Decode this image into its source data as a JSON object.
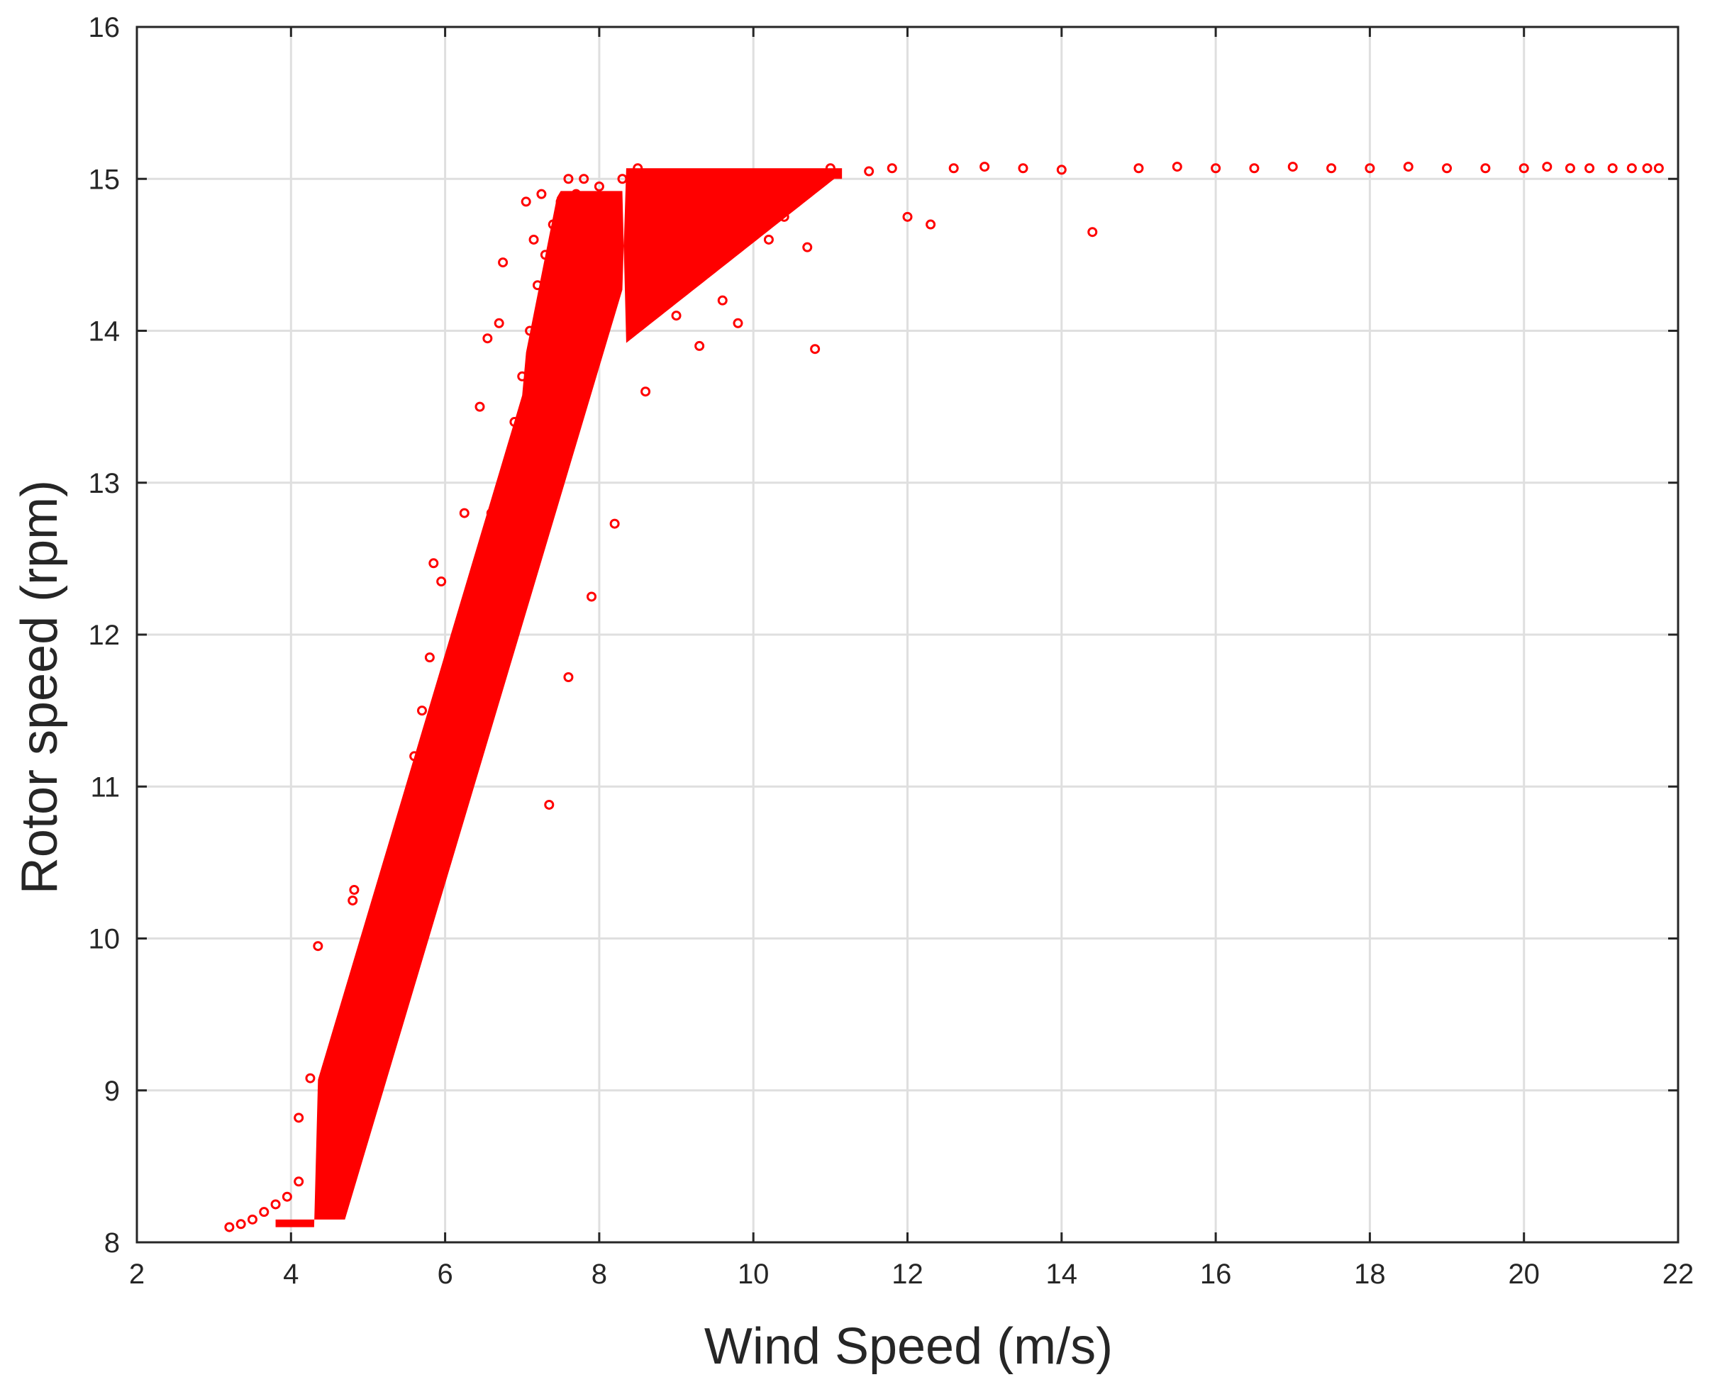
{
  "chart_data": {
    "type": "scatter",
    "xlabel": "Wind Speed (m/s)",
    "ylabel": "Rotor speed (rpm)",
    "xlim": [
      2,
      22
    ],
    "ylim": [
      8,
      16
    ],
    "xticks": [
      "2",
      "4",
      "6",
      "8",
      "10",
      "12",
      "14",
      "16",
      "18",
      "20",
      "22"
    ],
    "yticks": [
      "8",
      "9",
      "10",
      "11",
      "12",
      "13",
      "14",
      "15",
      "16"
    ],
    "grid": true,
    "marker_color": "#ff0000",
    "marker": "open-circle",
    "series": [
      {
        "values": [
          [
            3.2,
            8.1
          ],
          [
            3.35,
            8.12
          ],
          [
            3.5,
            8.15
          ],
          [
            3.65,
            8.2
          ],
          [
            3.8,
            8.25
          ],
          [
            3.95,
            8.3
          ],
          [
            4.1,
            8.4
          ],
          [
            4.1,
            8.82
          ],
          [
            4.25,
            9.08
          ],
          [
            4.35,
            9.95
          ],
          [
            4.45,
            8.6
          ],
          [
            4.55,
            8.95
          ],
          [
            4.65,
            9.45
          ],
          [
            4.8,
            10.25
          ],
          [
            4.82,
            10.32
          ],
          [
            4.9,
            9.1
          ],
          [
            5.0,
            9.4
          ],
          [
            5.1,
            9.7
          ],
          [
            5.2,
            10.0
          ],
          [
            5.3,
            10.3
          ],
          [
            5.4,
            10.6
          ],
          [
            5.5,
            10.9
          ],
          [
            5.6,
            11.2
          ],
          [
            5.7,
            11.5
          ],
          [
            5.8,
            11.85
          ],
          [
            5.85,
            12.47
          ],
          [
            5.95,
            12.35
          ],
          [
            6.0,
            11.0
          ],
          [
            6.1,
            11.3
          ],
          [
            6.2,
            11.6
          ],
          [
            6.25,
            12.8
          ],
          [
            6.3,
            11.9
          ],
          [
            6.4,
            12.2
          ],
          [
            6.45,
            13.5
          ],
          [
            6.5,
            12.5
          ],
          [
            6.55,
            13.95
          ],
          [
            6.6,
            12.8
          ],
          [
            6.7,
            14.05
          ],
          [
            6.75,
            14.45
          ],
          [
            6.8,
            13.1
          ],
          [
            6.9,
            13.4
          ],
          [
            7.0,
            13.7
          ],
          [
            7.05,
            14.85
          ],
          [
            7.1,
            14.0
          ],
          [
            7.15,
            14.6
          ],
          [
            7.2,
            14.3
          ],
          [
            7.25,
            14.9
          ],
          [
            7.3,
            14.5
          ],
          [
            7.35,
            10.88
          ],
          [
            7.4,
            14.7
          ],
          [
            7.5,
            14.85
          ],
          [
            7.6,
            15.0
          ],
          [
            7.6,
            11.72
          ],
          [
            7.7,
            14.9
          ],
          [
            7.8,
            15.0
          ],
          [
            7.9,
            12.25
          ],
          [
            8.0,
            14.95
          ],
          [
            8.2,
            12.73
          ],
          [
            8.3,
            15.0
          ],
          [
            8.5,
            15.07
          ],
          [
            8.6,
            13.6
          ],
          [
            8.8,
            14.6
          ],
          [
            9.0,
            14.1
          ],
          [
            9.3,
            13.9
          ],
          [
            9.6,
            14.2
          ],
          [
            9.8,
            14.05
          ],
          [
            10.2,
            14.6
          ],
          [
            10.4,
            14.75
          ],
          [
            10.7,
            14.55
          ],
          [
            10.8,
            13.88
          ],
          [
            11.0,
            15.07
          ],
          [
            11.5,
            15.05
          ],
          [
            11.8,
            15.07
          ],
          [
            12.0,
            14.75
          ],
          [
            12.3,
            14.7
          ],
          [
            12.6,
            15.07
          ],
          [
            13.0,
            15.08
          ],
          [
            13.5,
            15.07
          ],
          [
            14.0,
            15.06
          ],
          [
            14.4,
            14.65
          ],
          [
            15.0,
            15.07
          ],
          [
            15.5,
            15.08
          ],
          [
            16.0,
            15.07
          ],
          [
            16.5,
            15.07
          ],
          [
            17.0,
            15.08
          ],
          [
            17.5,
            15.07
          ],
          [
            18.0,
            15.07
          ],
          [
            18.5,
            15.08
          ],
          [
            19.0,
            15.07
          ],
          [
            19.5,
            15.07
          ],
          [
            20.0,
            15.07
          ],
          [
            20.3,
            15.08
          ],
          [
            20.6,
            15.07
          ],
          [
            20.85,
            15.07
          ],
          [
            21.15,
            15.07
          ],
          [
            21.4,
            15.07
          ],
          [
            21.6,
            15.07
          ],
          [
            21.75,
            15.07
          ]
        ]
      }
    ]
  }
}
